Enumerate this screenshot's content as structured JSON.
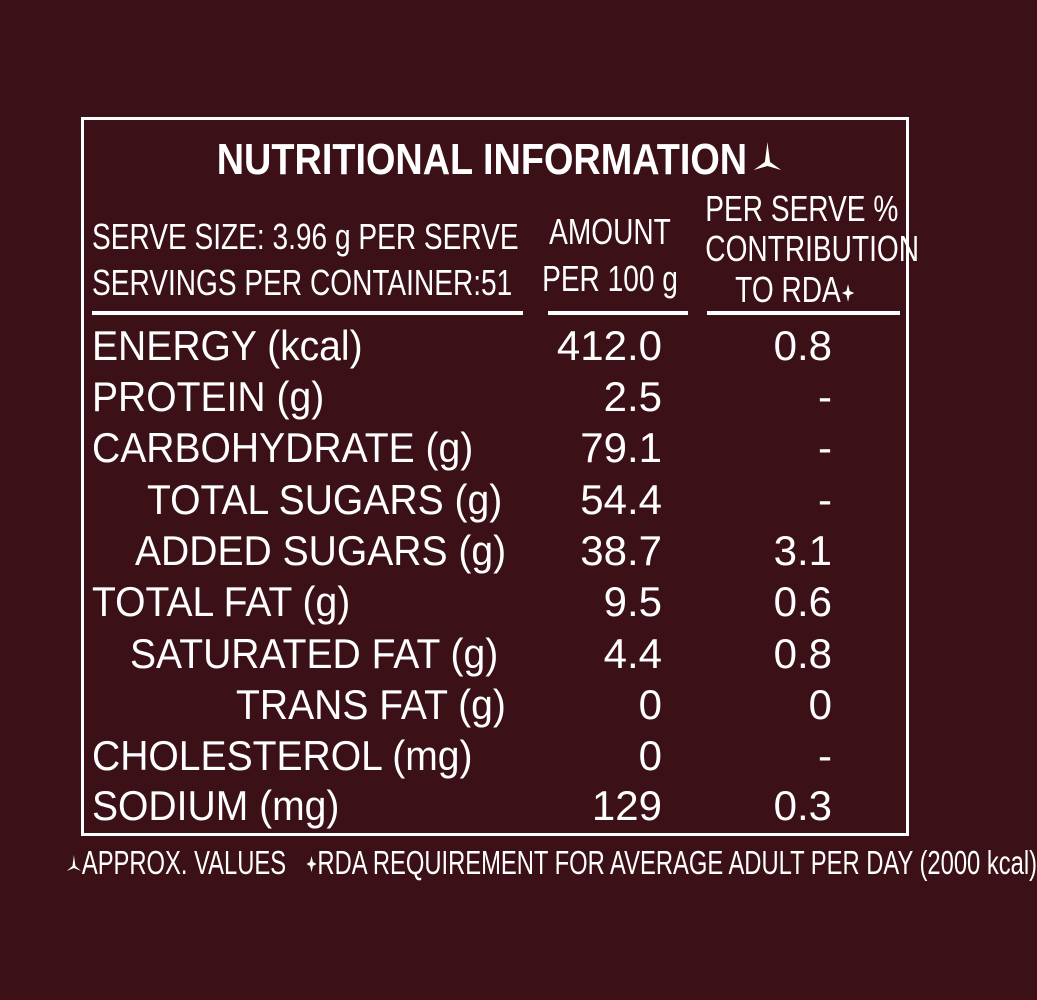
{
  "title": "NUTRITIONAL INFORMATION",
  "header": {
    "serve_size": "SERVE SIZE: 3.96 g PER SERVE",
    "servings": "SERVINGS PER CONTAINER:51",
    "amount_line1": "AMOUNT",
    "amount_line2": "PER 100 g",
    "rda_line1": "PER SERVE %",
    "rda_line2": "CONTRIBUTION",
    "rda_line3": "TO RDA"
  },
  "rows": [
    {
      "label": "ENERGY (kcal)",
      "amount": "412.0",
      "rda": "0.8"
    },
    {
      "label": "PROTEIN (g)",
      "amount": "2.5",
      "rda": "-"
    },
    {
      "label": "CARBOHYDRATE (g)",
      "amount": "79.1",
      "rda": "-"
    },
    {
      "label": "TOTAL SUGARS (g)",
      "amount": "54.4",
      "rda": "-"
    },
    {
      "label": "ADDED SUGARS (g)",
      "amount": "38.7",
      "rda": "3.1"
    },
    {
      "label": "TOTAL FAT (g)",
      "amount": "9.5",
      "rda": "0.6"
    },
    {
      "label": "SATURATED FAT (g)",
      "amount": "4.4",
      "rda": "0.8"
    },
    {
      "label": "TRANS FAT (g)",
      "amount": "0",
      "rda": "0"
    },
    {
      "label": "CHOLESTEROL (mg)",
      "amount": "0",
      "rda": "-"
    },
    {
      "label": "SODIUM (mg)",
      "amount": "129",
      "rda": "0.3"
    }
  ],
  "footnote": {
    "approx": "APPROX. VALUES",
    "rda_note": "RDA REQUIREMENT FOR AVERAGE ADULT PER DAY (2000 kcal)"
  },
  "colors": {
    "background": "#3b1117",
    "foreground": "#ffffff"
  },
  "icons": {
    "approx_marker": "three-point-star-icon",
    "rda_marker": "four-point-star-icon"
  }
}
